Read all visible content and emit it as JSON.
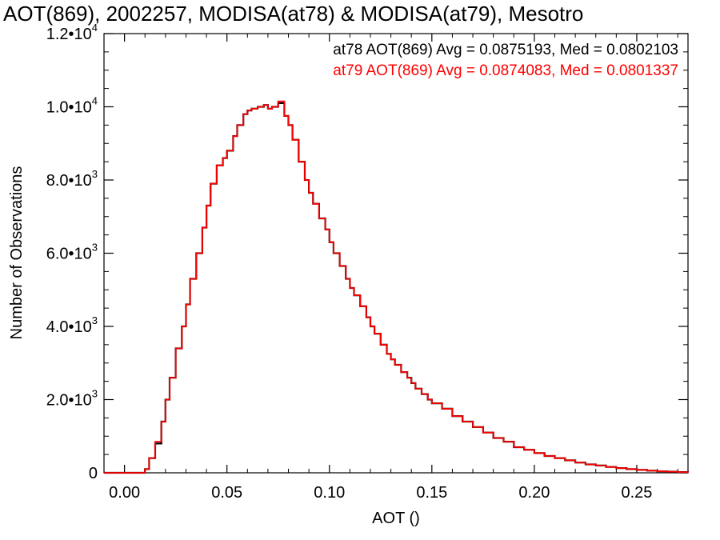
{
  "chart_data": {
    "type": "line",
    "title": "AOT(869), 2002257, MODISA(at78) & MODISA(at79), Mesotro",
    "xlabel": "AOT ()",
    "ylabel": "Number of Observations",
    "xlim": [
      -0.01,
      0.275
    ],
    "ylim": [
      0,
      12000
    ],
    "grid": false,
    "legend_placement": "top-right",
    "x_ticks": [
      {
        "value": 0.0,
        "label": "0.00"
      },
      {
        "value": 0.05,
        "label": "0.05"
      },
      {
        "value": 0.1,
        "label": "0.10"
      },
      {
        "value": 0.15,
        "label": "0.15"
      },
      {
        "value": 0.2,
        "label": "0.20"
      },
      {
        "value": 0.25,
        "label": "0.25"
      }
    ],
    "y_ticks": [
      {
        "value": 0,
        "mantissa": "0",
        "exponent": ""
      },
      {
        "value": 2000,
        "mantissa": "2.0•10",
        "exponent": "3"
      },
      {
        "value": 4000,
        "mantissa": "4.0•10",
        "exponent": "3"
      },
      {
        "value": 6000,
        "mantissa": "6.0•10",
        "exponent": "3"
      },
      {
        "value": 8000,
        "mantissa": "8.0•10",
        "exponent": "3"
      },
      {
        "value": 10000,
        "mantissa": "1.0•10",
        "exponent": "4"
      },
      {
        "value": 12000,
        "mantissa": "1.2•10",
        "exponent": "4"
      }
    ],
    "series": [
      {
        "name": "at78 AOT(869)",
        "legend_text": "at78 AOT(869) Avg = 0.0875193, Med = 0.0802103",
        "color": "#000000",
        "x": [
          -0.01,
          0.0,
          0.005,
          0.008,
          0.01,
          0.012,
          0.015,
          0.018,
          0.02,
          0.022,
          0.025,
          0.028,
          0.03,
          0.032,
          0.035,
          0.038,
          0.04,
          0.042,
          0.045,
          0.048,
          0.05,
          0.053,
          0.055,
          0.058,
          0.06,
          0.062,
          0.065,
          0.068,
          0.07,
          0.072,
          0.075,
          0.078,
          0.08,
          0.082,
          0.085,
          0.088,
          0.09,
          0.092,
          0.095,
          0.098,
          0.1,
          0.102,
          0.105,
          0.108,
          0.11,
          0.112,
          0.115,
          0.118,
          0.12,
          0.122,
          0.125,
          0.128,
          0.13,
          0.132,
          0.135,
          0.138,
          0.14,
          0.142,
          0.145,
          0.148,
          0.15,
          0.155,
          0.16,
          0.165,
          0.17,
          0.175,
          0.18,
          0.185,
          0.19,
          0.195,
          0.2,
          0.205,
          0.21,
          0.215,
          0.22,
          0.225,
          0.23,
          0.235,
          0.24,
          0.245,
          0.25,
          0.255,
          0.26,
          0.265,
          0.27,
          0.275
        ],
        "values": [
          0,
          0,
          0,
          0,
          100,
          400,
          800,
          1400,
          2000,
          2600,
          3400,
          4000,
          4600,
          5300,
          6000,
          6700,
          7300,
          7900,
          8400,
          8600,
          8800,
          9200,
          9500,
          9800,
          9900,
          9950,
          10000,
          10050,
          9950,
          10000,
          10100,
          9750,
          9500,
          9100,
          8500,
          8000,
          7650,
          7350,
          6950,
          6650,
          6300,
          6000,
          5650,
          5300,
          5050,
          4850,
          4550,
          4250,
          4000,
          3800,
          3500,
          3250,
          3100,
          2950,
          2750,
          2600,
          2450,
          2300,
          2150,
          2000,
          1900,
          1750,
          1550,
          1400,
          1250,
          1100,
          950,
          850,
          700,
          630,
          540,
          460,
          400,
          340,
          280,
          230,
          200,
          160,
          130,
          100,
          80,
          60,
          40,
          30,
          20,
          10
        ]
      },
      {
        "name": "at79 AOT(869)",
        "legend_text": "at79 AOT(869) Avg = 0.0874083, Med = 0.0801337",
        "color": "#ff0000",
        "x": [
          -0.01,
          0.0,
          0.005,
          0.008,
          0.01,
          0.012,
          0.015,
          0.018,
          0.02,
          0.022,
          0.025,
          0.028,
          0.03,
          0.032,
          0.035,
          0.038,
          0.04,
          0.042,
          0.045,
          0.048,
          0.05,
          0.053,
          0.055,
          0.058,
          0.06,
          0.062,
          0.065,
          0.068,
          0.07,
          0.072,
          0.075,
          0.078,
          0.08,
          0.082,
          0.085,
          0.088,
          0.09,
          0.092,
          0.095,
          0.098,
          0.1,
          0.102,
          0.105,
          0.108,
          0.11,
          0.112,
          0.115,
          0.118,
          0.12,
          0.122,
          0.125,
          0.128,
          0.13,
          0.132,
          0.135,
          0.138,
          0.14,
          0.142,
          0.145,
          0.148,
          0.15,
          0.155,
          0.16,
          0.165,
          0.17,
          0.175,
          0.18,
          0.185,
          0.19,
          0.195,
          0.2,
          0.205,
          0.21,
          0.215,
          0.22,
          0.225,
          0.23,
          0.235,
          0.24,
          0.245,
          0.25,
          0.255,
          0.26,
          0.265,
          0.27,
          0.275
        ],
        "values": [
          0,
          0,
          0,
          0,
          100,
          400,
          850,
          1400,
          2000,
          2600,
          3400,
          4000,
          4600,
          5300,
          6000,
          6700,
          7300,
          7900,
          8400,
          8600,
          8800,
          9200,
          9500,
          9800,
          9900,
          9950,
          10000,
          10050,
          9950,
          10000,
          10150,
          9750,
          9500,
          9100,
          8500,
          8000,
          7650,
          7350,
          6950,
          6650,
          6300,
          6000,
          5650,
          5300,
          5050,
          4850,
          4550,
          4250,
          4000,
          3800,
          3500,
          3250,
          3100,
          2950,
          2750,
          2600,
          2450,
          2300,
          2150,
          2000,
          1900,
          1750,
          1550,
          1400,
          1250,
          1100,
          950,
          850,
          700,
          630,
          540,
          460,
          400,
          340,
          280,
          230,
          200,
          160,
          130,
          100,
          80,
          60,
          40,
          30,
          20,
          10
        ]
      }
    ]
  }
}
